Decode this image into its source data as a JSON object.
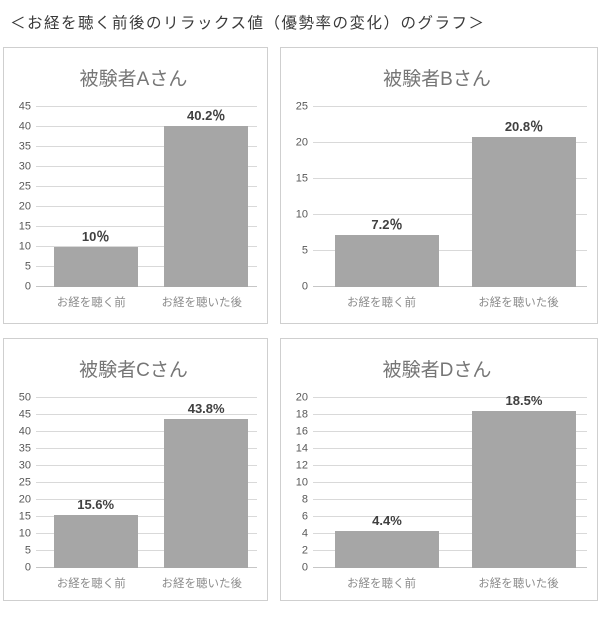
{
  "page": {
    "title": "＜お経を聴く前後のリラックス値（優勢率の変化）のグラフ＞"
  },
  "colors": {
    "bar_color": "#a6a6a6",
    "gridline_color": "#d9d9d9",
    "panel_border": "#cfcfcf",
    "panel_title_text": "#767676",
    "tick_text": "#595959",
    "data_label_text": "#404040",
    "category_text": "#8c8c8c"
  },
  "chart_data": [
    {
      "type": "bar",
      "title": "被験者Aさん",
      "categories": [
        "お経を聴く前",
        "お経を聴いた後"
      ],
      "values": [
        10,
        40.2
      ],
      "value_labels": [
        "10％",
        "40.2％"
      ],
      "ylim": [
        0,
        45
      ],
      "yticks": [
        0,
        5,
        10,
        15,
        20,
        25,
        30,
        35,
        40,
        45
      ],
      "grid": "horizontal",
      "legend": "none"
    },
    {
      "type": "bar",
      "title": "被験者Bさん",
      "categories": [
        "お経を聴く前",
        "お経を聴いた後"
      ],
      "values": [
        7.2,
        20.8
      ],
      "value_labels": [
        "7.2％",
        "20.8％"
      ],
      "ylim": [
        0,
        25
      ],
      "yticks": [
        0,
        5,
        10,
        15,
        20,
        25
      ],
      "grid": "horizontal",
      "legend": "none"
    },
    {
      "type": "bar",
      "title": "被験者Cさん",
      "categories": [
        "お経を聴く前",
        "お経を聴いた後"
      ],
      "values": [
        15.6,
        43.8
      ],
      "value_labels": [
        "15.6%",
        "43.8%"
      ],
      "ylim": [
        0,
        50
      ],
      "yticks": [
        0,
        5,
        10,
        15,
        20,
        25,
        30,
        35,
        40,
        45,
        50
      ],
      "grid": "horizontal",
      "legend": "none"
    },
    {
      "type": "bar",
      "title": "被験者Dさん",
      "categories": [
        "お経を聴く前",
        "お経を聴いた後"
      ],
      "values": [
        4.4,
        18.5
      ],
      "value_labels": [
        "4.4%",
        "18.5%"
      ],
      "ylim": [
        0,
        20
      ],
      "yticks": [
        0,
        2,
        4,
        6,
        8,
        10,
        12,
        14,
        16,
        18,
        20
      ],
      "grid": "horizontal",
      "legend": "none"
    }
  ]
}
